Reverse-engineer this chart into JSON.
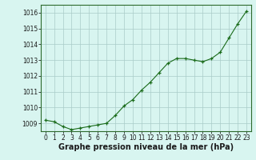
{
  "x": [
    0,
    1,
    2,
    3,
    4,
    5,
    6,
    7,
    8,
    9,
    10,
    11,
    12,
    13,
    14,
    15,
    16,
    17,
    18,
    19,
    20,
    21,
    22,
    23
  ],
  "y": [
    1009.2,
    1009.1,
    1008.8,
    1008.6,
    1008.7,
    1008.8,
    1008.9,
    1009.0,
    1009.5,
    1010.1,
    1010.5,
    1011.1,
    1011.6,
    1012.2,
    1012.8,
    1013.1,
    1013.1,
    1013.0,
    1012.9,
    1013.1,
    1013.5,
    1014.4,
    1015.3,
    1016.1
  ],
  "line_color": "#1a6b1a",
  "marker_color": "#1a6b1a",
  "bg_color": "#d8f5f0",
  "grid_color": "#aaccc8",
  "xlabel": "Graphe pression niveau de la mer (hPa)",
  "ylim_min": 1008.5,
  "ylim_max": 1016.5,
  "yticks": [
    1009,
    1010,
    1011,
    1012,
    1013,
    1014,
    1015,
    1016
  ],
  "xticks": [
    0,
    1,
    2,
    3,
    4,
    5,
    6,
    7,
    8,
    9,
    10,
    11,
    12,
    13,
    14,
    15,
    16,
    17,
    18,
    19,
    20,
    21,
    22,
    23
  ],
  "tick_fontsize": 5.5,
  "xlabel_fontsize": 7.0,
  "border_color": "#2d6a2d"
}
